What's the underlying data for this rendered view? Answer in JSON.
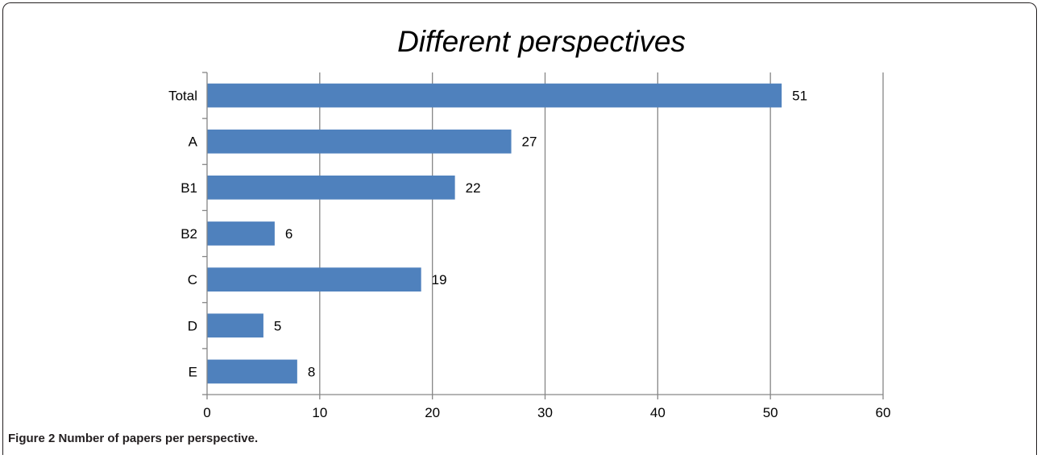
{
  "chart_data": {
    "type": "bar",
    "orientation": "horizontal",
    "title": "Different perspectives",
    "categories": [
      "Total",
      "A",
      "B1",
      "B2",
      "C",
      "D",
      "E"
    ],
    "values": [
      51,
      27,
      22,
      6,
      19,
      5,
      8
    ],
    "xlim": [
      0,
      60
    ],
    "x_ticks": [
      "0",
      "10",
      "20",
      "30",
      "40",
      "50",
      "60"
    ],
    "xlabel": "",
    "ylabel": "",
    "grid": "vertical",
    "legend": "none",
    "bar_color": "#4f81bd",
    "data_labels": true
  },
  "caption": {
    "label": "Figure 2",
    "text": "Number of papers per perspective."
  }
}
